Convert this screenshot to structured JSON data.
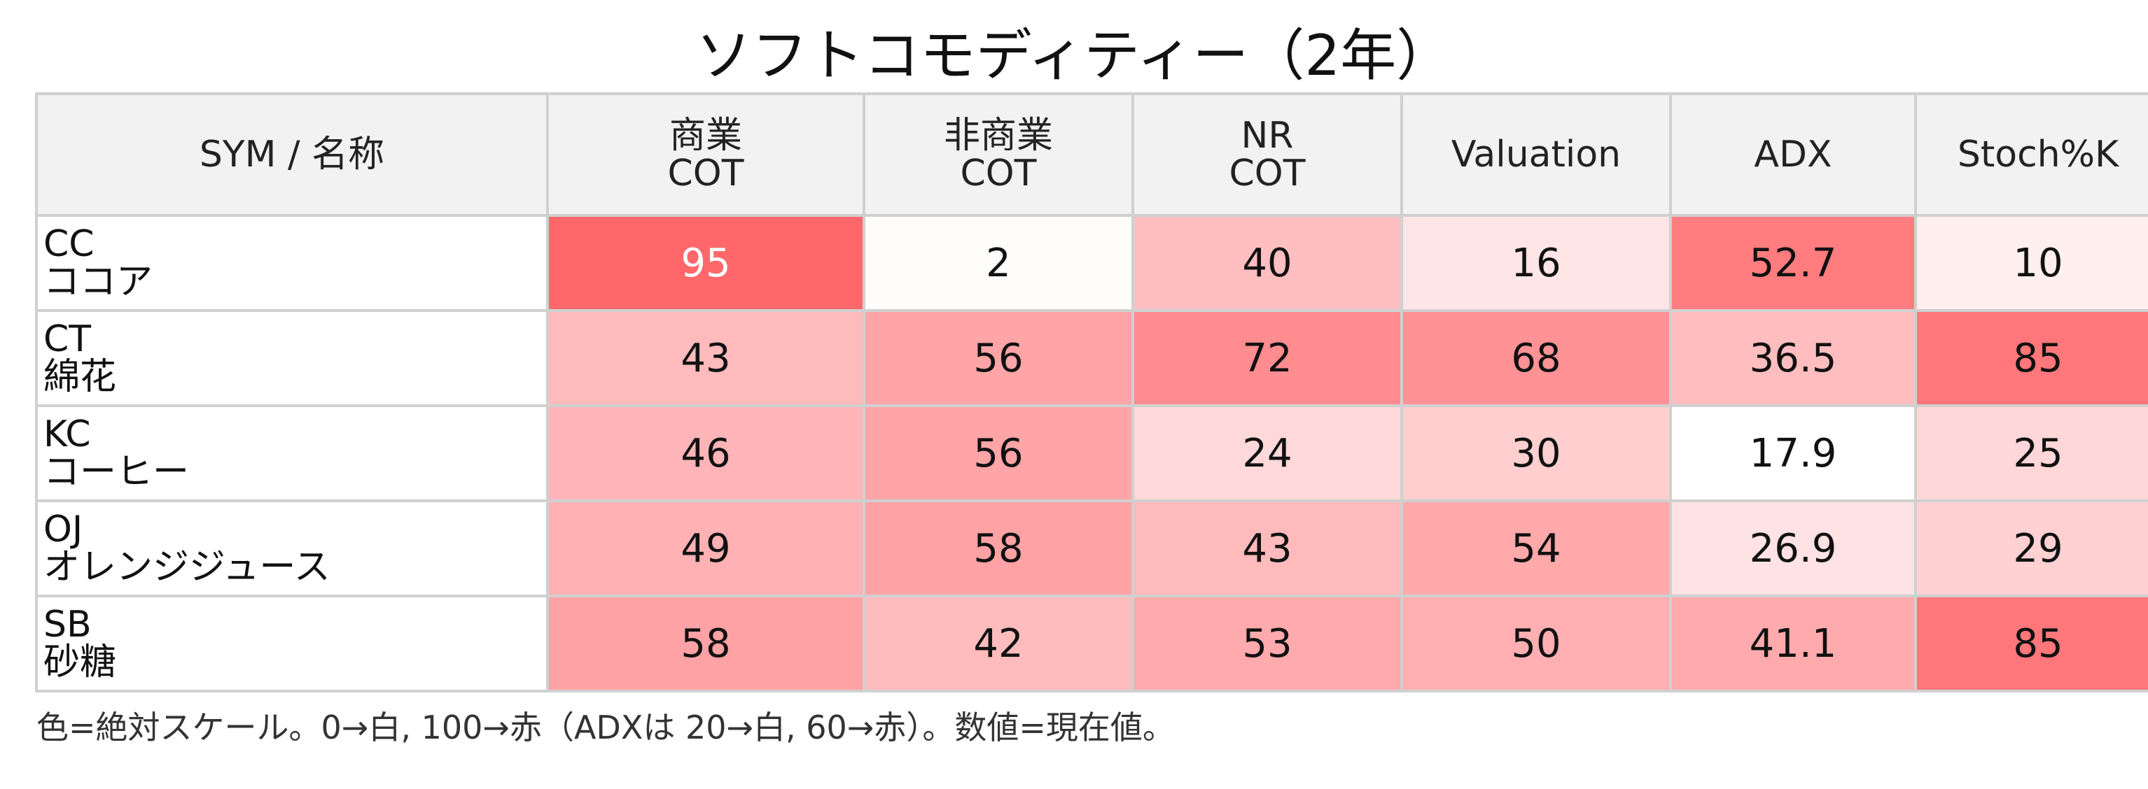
{
  "chart_data": {
    "type": "heatmap",
    "title": "ソフトコモディティー（2年）",
    "columns": [
      {
        "key": "sym_name",
        "label_lines": [
          "SYM / 名称"
        ]
      },
      {
        "key": "commercial_cot",
        "label_lines": [
          "商業",
          "COT"
        ]
      },
      {
        "key": "noncommercial_cot",
        "label_lines": [
          "非商業",
          "COT"
        ]
      },
      {
        "key": "nr_cot",
        "label_lines": [
          "NR",
          "COT"
        ]
      },
      {
        "key": "valuation",
        "label_lines": [
          "Valuation"
        ]
      },
      {
        "key": "adx",
        "label_lines": [
          "ADX"
        ]
      },
      {
        "key": "stoch_k",
        "label_lines": [
          "Stoch%K"
        ]
      }
    ],
    "rows": [
      {
        "symbol": "CC",
        "name": "ココア",
        "values": [
          "95",
          "2",
          "40",
          "16",
          "52.7",
          "10"
        ]
      },
      {
        "symbol": "CT",
        "name": "綿花",
        "values": [
          "43",
          "56",
          "72",
          "68",
          "36.5",
          "85"
        ]
      },
      {
        "symbol": "KC",
        "name": "コーヒー",
        "values": [
          "46",
          "56",
          "24",
          "30",
          "17.9",
          "25"
        ]
      },
      {
        "symbol": "OJ",
        "name": "オレンジジュース",
        "values": [
          "49",
          "58",
          "43",
          "54",
          "26.9",
          "29"
        ]
      },
      {
        "symbol": "SB",
        "name": "砂糖",
        "values": [
          "58",
          "42",
          "53",
          "50",
          "41.1",
          "85"
        ]
      }
    ],
    "color_scale": {
      "low_color": "#ffffff",
      "high_color": "#ff5f63",
      "default_range": [
        0,
        100
      ],
      "adx_range": [
        20,
        60
      ]
    },
    "footnote": "色=絶対スケール。0→白, 100→赤（ADXは 20→白, 60→赤）。数値=現在値。"
  },
  "colors": {
    "header_bg": "#f2f2f2",
    "grid_line": "#d0d0d0",
    "high_value_text": "#ffffff"
  }
}
